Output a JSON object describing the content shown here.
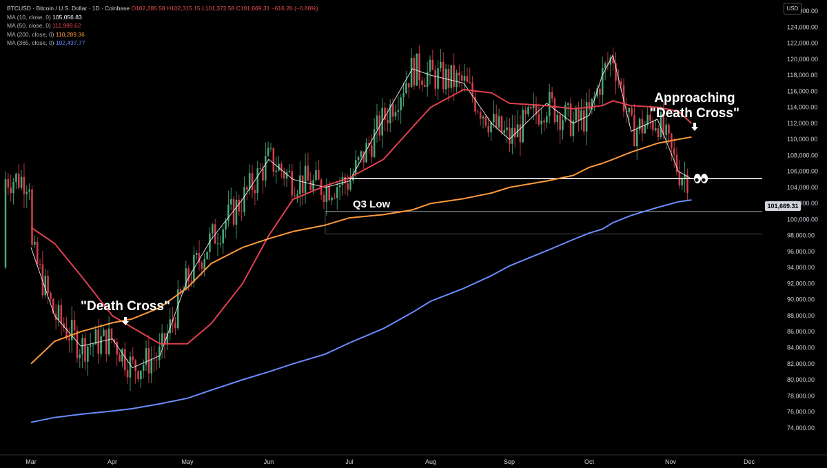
{
  "header": {
    "title": "BTCUSD · Bitcoin / U.S. Dollar · 1D · Coinbase",
    "ohlc": "O102,285.58  H102,315.15  L101,372.58  C101,669.31  −616.26 (−0.60%)"
  },
  "currency_button": "USD",
  "legend": [
    {
      "label": "MA (10, close, 0)",
      "value": "105,056.83",
      "color": "#ffffff"
    },
    {
      "label": "MA (50, close, 0)",
      "value": "111,989.62",
      "color": "#e0414f"
    },
    {
      "label": "MA (200, close, 0)",
      "value": "110,289.36",
      "color": "#ff9a3c"
    },
    {
      "label": "MA (365, close, 0)",
      "value": "102,437.77",
      "color": "#6b8cff"
    }
  ],
  "price_tag": "101,669.31",
  "chart_data": {
    "type": "line",
    "title": "",
    "xlabel": "",
    "ylabel": "",
    "x_ticks": [
      "Mar",
      "Apr",
      "May",
      "Jun",
      "Jul",
      "Aug",
      "Sep",
      "Oct",
      "Nov",
      "Dec"
    ],
    "y_ticks": [
      "74,000.00",
      "76,000.00",
      "78,000.00",
      "80,000.00",
      "82,000.00",
      "84,000.00",
      "86,000.00",
      "88,000.00",
      "90,000.00",
      "92,000.00",
      "94,000.00",
      "96,000.00",
      "98,000.00",
      "100,000.00",
      "102,000.00",
      "104,000.00",
      "106,000.00",
      "108,000.00",
      "110,000.00",
      "112,000.00",
      "114,000.00",
      "116,000.00",
      "118,000.00",
      "120,000.00",
      "122,000.00",
      "124,000.00",
      "126,000.00"
    ],
    "ylim": [
      73000,
      127000
    ],
    "grid": false,
    "x": [
      "Feb 22",
      "Mar 1",
      "Mar 10",
      "Mar 20",
      "Apr 1",
      "Apr 9",
      "Apr 20",
      "May 1",
      "May 10",
      "May 22",
      "Jun 1",
      "Jun 10",
      "Jun 22",
      "Jul 1",
      "Jul 14",
      "Jul 25",
      "Aug 1",
      "Aug 14",
      "Aug 25",
      "Sep 1",
      "Sep 15",
      "Sep 25",
      "Oct 1",
      "Oct 6",
      "Oct 10",
      "Oct 17",
      "Oct 27",
      "Nov 4",
      "Nov 9"
    ],
    "series": [
      {
        "name": "MA (10, close, 0)",
        "color": "#ffffff",
        "values": [
          null,
          96500,
          88000,
          84200,
          85100,
          81500,
          83000,
          92500,
          97500,
          102500,
          107500,
          105000,
          104000,
          104800,
          112500,
          118800,
          118000,
          117000,
          112000,
          110000,
          114500,
          112000,
          113000,
          118000,
          120500,
          111000,
          112500,
          106000,
          105057
        ]
      },
      {
        "name": "MA (50, close, 0)",
        "color": "#e0414f",
        "values": [
          null,
          99000,
          97000,
          93000,
          88000,
          86500,
          84500,
          84500,
          87000,
          92000,
          98000,
          102500,
          104200,
          105200,
          107500,
          111500,
          114000,
          116200,
          115800,
          114500,
          114200,
          113800,
          114000,
          114200,
          114800,
          114200,
          114000,
          113500,
          111990
        ]
      },
      {
        "name": "MA (200, close, 0)",
        "color": "#ff9a3c",
        "values": [
          null,
          82000,
          84800,
          86000,
          87100,
          87600,
          89000,
          91500,
          94500,
          96500,
          97600,
          98500,
          99300,
          100200,
          100600,
          101200,
          102000,
          102600,
          103300,
          104000,
          104800,
          105500,
          106500,
          107000,
          107500,
          108400,
          109500,
          110000,
          110289
        ]
      },
      {
        "name": "MA (365, close, 0)",
        "color": "#6b8cff",
        "values": [
          null,
          74700,
          75300,
          75700,
          76100,
          76400,
          77000,
          77700,
          78700,
          80000,
          81000,
          82000,
          83200,
          84600,
          86400,
          88400,
          89800,
          91400,
          93000,
          94200,
          96100,
          97500,
          98300,
          98800,
          99600,
          100500,
          101500,
          102200,
          102438
        ]
      }
    ],
    "candles_note": "Daily OHLC candles between the moving averages",
    "annotations": [
      {
        "text": "\"Death Cross\"",
        "at_x": "Apr 1",
        "at_price": 86500
      },
      {
        "text": "Approaching",
        "at_x": "Nov 1",
        "at_price": 117500
      },
      {
        "text": "\"Death Cross\"",
        "at_x": "Nov 1",
        "at_price": 115700
      },
      {
        "text": "Q3 Low",
        "at_x": "Jul 7",
        "at_price": 104000
      }
    ],
    "horizontal_levels": [
      105100,
      101000,
      98200
    ],
    "eyes_emoji": "👀"
  }
}
